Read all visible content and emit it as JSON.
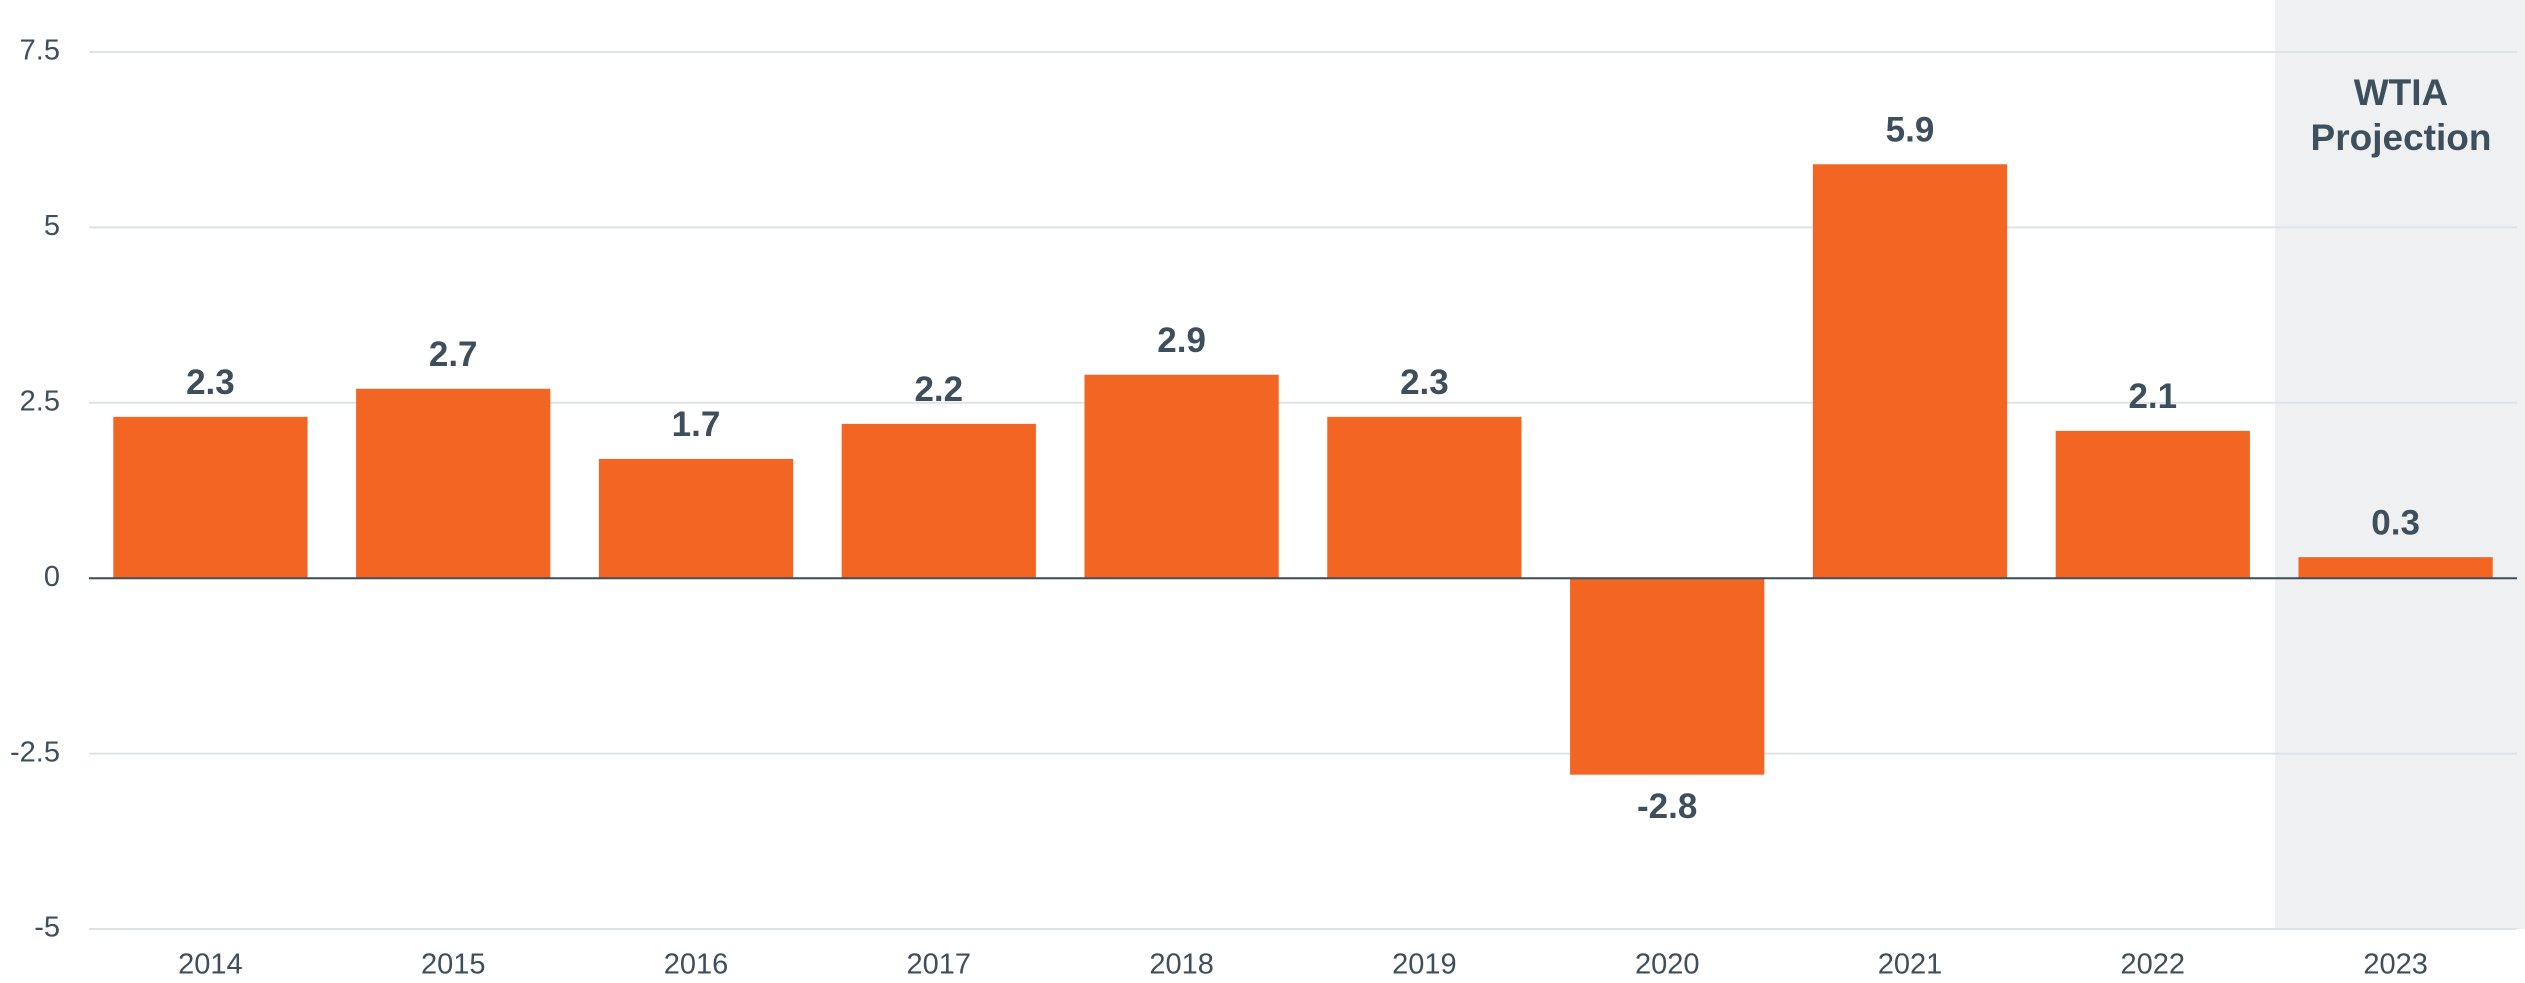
{
  "chart_data": {
    "type": "bar",
    "categories": [
      "2014",
      "2015",
      "2016",
      "2017",
      "2018",
      "2019",
      "2020",
      "2021",
      "2022",
      "2023"
    ],
    "values": [
      2.3,
      2.7,
      1.7,
      2.2,
      2.9,
      2.3,
      -2.8,
      5.9,
      2.1,
      0.3
    ],
    "color": "#f26522",
    "ylim": [
      -5,
      7.5
    ],
    "yticks": [
      -5,
      -2.5,
      0,
      2.5,
      5,
      7.5
    ],
    "grid": true,
    "annotation": [
      "WTIA",
      "Projection"
    ]
  }
}
